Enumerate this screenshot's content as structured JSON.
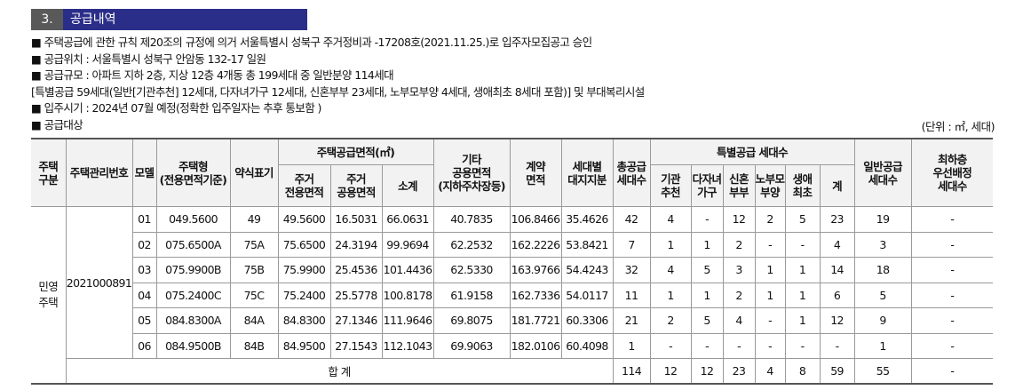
{
  "section": {
    "number": "3.",
    "title": "공급내역"
  },
  "notes": [
    "■ 주택공급에 관한 규칙 제20조의 규정에 의거 서울특별시 성북구 주거정비과 -17208호(2021.11.25.)로 입주자모집공고 승인",
    "■ 공급위치 : 서울특별시 성북구 안암동 132-17 일원",
    "■ 공급규모 : 아파트 지하 2층, 지상 12층 4개동 총 199세대 중 일반분양 114세대",
    " [특별공급 59세대(일반[기관추천] 12세대, 다자녀가구 12세대, 신혼부부 23세대, 노부모부양 4세대, 생애최초 8세대 포함)] 및 부대복리시설",
    "■ 입주시기 : 2024년 07월 예정(정확한 입주일자는 추후 통보함 )",
    "■ 공급대상"
  ],
  "unit": "(단위 : ㎡, 세대)",
  "headers": {
    "housing_type": "주택\n구분",
    "mgmt_no": "주택관리번호",
    "model": "모델",
    "house_type": "주택형\n(전용면적기준)",
    "abbr": "약식표기",
    "supply_area": "주택공급면적(㎡)",
    "exclusive": "주거\n전용면적",
    "common": "주거\n공용면적",
    "subtotal": "소계",
    "other": "기타\n공용면적\n(지하주차장등)",
    "contract": "계약\n면적",
    "land": "세대별\n대지지분",
    "total_supply": "총공급\n세대수",
    "special": "특별공급 세대수",
    "institution": "기관\n추천",
    "multichild": "다자녀\n가구",
    "newlywed": "신혼\n부부",
    "elderly": "노부모\n부양",
    "firsttime": "생애\n최초",
    "sum": "계",
    "general": "일반공급\n세대수",
    "lowest_floor": "최하층\n우선배정\n세대수"
  },
  "housing_type_value": "민영\n주택",
  "mgmt_no_value": "2021000891",
  "rows": [
    {
      "model": "01",
      "type": "049.5600",
      "abbr": "49",
      "excl": "49.5600",
      "comm": "16.5031",
      "sub": "66.0631",
      "other": "40.7835",
      "contract": "106.8466",
      "land": "35.4626",
      "total": "42",
      "inst": "4",
      "multi": "-",
      "newly": "12",
      "elder": "2",
      "first": "5",
      "sum": "23",
      "gen": "19",
      "low": "-"
    },
    {
      "model": "02",
      "type": "075.6500A",
      "abbr": "75A",
      "excl": "75.6500",
      "comm": "24.3194",
      "sub": "99.9694",
      "other": "62.2532",
      "contract": "162.2226",
      "land": "53.8421",
      "total": "7",
      "inst": "1",
      "multi": "1",
      "newly": "2",
      "elder": "-",
      "first": "-",
      "sum": "4",
      "gen": "3",
      "low": "-"
    },
    {
      "model": "03",
      "type": "075.9900B",
      "abbr": "75B",
      "excl": "75.9900",
      "comm": "25.4536",
      "sub": "101.4436",
      "other": "62.5330",
      "contract": "163.9766",
      "land": "54.4243",
      "total": "32",
      "inst": "4",
      "multi": "5",
      "newly": "3",
      "elder": "1",
      "first": "1",
      "sum": "14",
      "gen": "18",
      "low": "-"
    },
    {
      "model": "04",
      "type": "075.2400C",
      "abbr": "75C",
      "excl": "75.2400",
      "comm": "25.5778",
      "sub": "100.8178",
      "other": "61.9158",
      "contract": "162.7336",
      "land": "54.0117",
      "total": "11",
      "inst": "1",
      "multi": "1",
      "newly": "2",
      "elder": "1",
      "first": "1",
      "sum": "6",
      "gen": "5",
      "low": "-"
    },
    {
      "model": "05",
      "type": "084.8300A",
      "abbr": "84A",
      "excl": "84.8300",
      "comm": "27.1346",
      "sub": "111.9646",
      "other": "69.8075",
      "contract": "181.7721",
      "land": "60.3306",
      "total": "21",
      "inst": "2",
      "multi": "5",
      "newly": "4",
      "elder": "-",
      "first": "1",
      "sum": "12",
      "gen": "9",
      "low": "-"
    },
    {
      "model": "06",
      "type": "084.9500B",
      "abbr": "84B",
      "excl": "84.9500",
      "comm": "27.1543",
      "sub": "112.1043",
      "other": "69.9063",
      "contract": "182.0106",
      "land": "60.4098",
      "total": "1",
      "inst": "-",
      "multi": "-",
      "newly": "-",
      "elder": "-",
      "first": "-",
      "sum": "-",
      "gen": "1",
      "low": "-"
    }
  ],
  "totals": {
    "label": "합 계",
    "total": "114",
    "inst": "12",
    "multi": "12",
    "newly": "23",
    "elder": "4",
    "first": "8",
    "sum": "59",
    "gen": "55",
    "low": "-"
  }
}
